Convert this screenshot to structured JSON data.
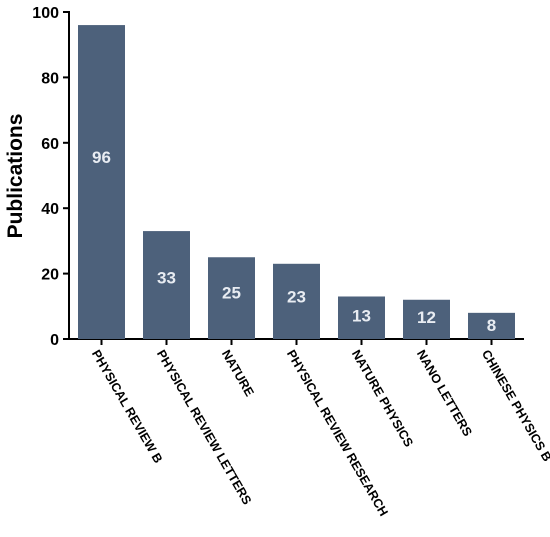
{
  "chart_data": {
    "type": "bar",
    "title": "",
    "xlabel": "",
    "ylabel": "Publications",
    "ylim": [
      0,
      100
    ],
    "yticks": [
      0,
      20,
      40,
      60,
      80,
      100
    ],
    "grid": false,
    "categories": [
      "PHYSICAL REVIEW B",
      "PHYSICAL REVIEW LETTERS",
      "NATURE",
      "PHYSICAL REVIEW RESEARCH",
      "NATURE PHYSICS",
      "NANO LETTERS",
      "CHINESE PHYSICS B"
    ],
    "values": [
      96,
      33,
      25,
      23,
      13,
      12,
      8
    ],
    "data_labels": [
      "96",
      "33",
      "25",
      "23",
      "13",
      "12",
      "8"
    ],
    "colors": {
      "bar": "#4d617b",
      "bar_label": "#e8ecf2",
      "axis": "#000000"
    }
  }
}
